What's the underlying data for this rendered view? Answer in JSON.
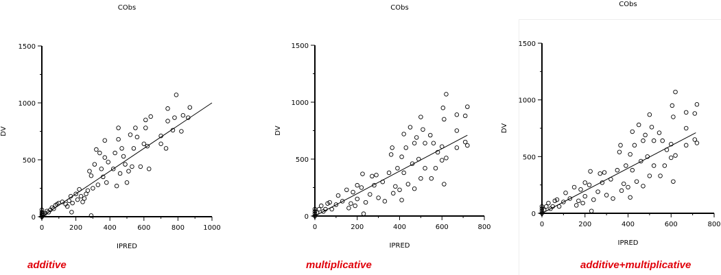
{
  "chart_data": [
    {
      "type": "scatter",
      "title": "CObs",
      "xlabel": "IPRED",
      "ylabel": "DV",
      "caption": "additive",
      "xlim": [
        0,
        1000
      ],
      "ylim": [
        0,
        1500
      ],
      "xticks": [
        0,
        200,
        400,
        600,
        800,
        1000
      ],
      "yticks": [
        0,
        500,
        1000,
        1500
      ],
      "fit_line": [
        [
          0,
          0
        ],
        [
          1000,
          1000
        ]
      ],
      "points": [
        [
          0,
          0
        ],
        [
          0,
          20
        ],
        [
          0,
          40
        ],
        [
          0,
          60
        ],
        [
          2,
          10
        ],
        [
          3,
          30
        ],
        [
          10,
          20
        ],
        [
          20,
          30
        ],
        [
          30,
          50
        ],
        [
          40,
          40
        ],
        [
          50,
          60
        ],
        [
          60,
          80
        ],
        [
          70,
          70
        ],
        [
          80,
          100
        ],
        [
          90,
          110
        ],
        [
          100,
          120
        ],
        [
          120,
          130
        ],
        [
          140,
          110
        ],
        [
          150,
          90
        ],
        [
          160,
          140
        ],
        [
          170,
          180
        ],
        [
          175,
          40
        ],
        [
          180,
          120
        ],
        [
          200,
          200
        ],
        [
          210,
          150
        ],
        [
          220,
          240
        ],
        [
          230,
          180
        ],
        [
          240,
          130
        ],
        [
          250,
          160
        ],
        [
          260,
          200
        ],
        [
          270,
          230
        ],
        [
          280,
          400
        ],
        [
          290,
          10
        ],
        [
          290,
          360
        ],
        [
          300,
          250
        ],
        [
          310,
          460
        ],
        [
          320,
          590
        ],
        [
          330,
          280
        ],
        [
          340,
          560
        ],
        [
          350,
          420
        ],
        [
          360,
          350
        ],
        [
          370,
          670
        ],
        [
          370,
          520
        ],
        [
          380,
          300
        ],
        [
          390,
          480
        ],
        [
          420,
          420
        ],
        [
          430,
          560
        ],
        [
          440,
          270
        ],
        [
          450,
          780
        ],
        [
          450,
          680
        ],
        [
          460,
          380
        ],
        [
          470,
          600
        ],
        [
          480,
          530
        ],
        [
          490,
          460
        ],
        [
          500,
          300
        ],
        [
          510,
          400
        ],
        [
          520,
          720
        ],
        [
          530,
          440
        ],
        [
          540,
          600
        ],
        [
          550,
          780
        ],
        [
          560,
          700
        ],
        [
          580,
          440
        ],
        [
          600,
          640
        ],
        [
          610,
          780
        ],
        [
          610,
          850
        ],
        [
          620,
          620
        ],
        [
          630,
          420
        ],
        [
          640,
          880
        ],
        [
          700,
          710
        ],
        [
          700,
          640
        ],
        [
          730,
          600
        ],
        [
          740,
          950
        ],
        [
          740,
          840
        ],
        [
          770,
          760
        ],
        [
          780,
          870
        ],
        [
          790,
          1070
        ],
        [
          820,
          750
        ],
        [
          830,
          890
        ],
        [
          860,
          870
        ],
        [
          870,
          960
        ]
      ]
    },
    {
      "type": "scatter",
      "title": "CObs",
      "xlabel": "IPRED",
      "ylabel": "DV",
      "caption": "multiplicative",
      "xlim": [
        0,
        800
      ],
      "ylim": [
        0,
        1500
      ],
      "xticks": [
        0,
        200,
        400,
        600,
        800
      ],
      "yticks": [
        0,
        500,
        1000,
        1500
      ],
      "fit_line": [
        [
          0,
          0
        ],
        [
          720,
          710
        ]
      ],
      "points": [
        [
          0,
          0
        ],
        [
          0,
          20
        ],
        [
          0,
          40
        ],
        [
          0,
          60
        ],
        [
          10,
          30
        ],
        [
          20,
          60
        ],
        [
          30,
          90
        ],
        [
          40,
          40
        ],
        [
          50,
          60
        ],
        [
          60,
          110
        ],
        [
          70,
          120
        ],
        [
          80,
          60
        ],
        [
          100,
          100
        ],
        [
          110,
          180
        ],
        [
          130,
          130
        ],
        [
          150,
          230
        ],
        [
          160,
          70
        ],
        [
          170,
          110
        ],
        [
          180,
          210
        ],
        [
          190,
          90
        ],
        [
          200,
          150
        ],
        [
          200,
          270
        ],
        [
          220,
          250
        ],
        [
          225,
          370
        ],
        [
          230,
          20
        ],
        [
          240,
          120
        ],
        [
          260,
          190
        ],
        [
          270,
          350
        ],
        [
          280,
          270
        ],
        [
          290,
          360
        ],
        [
          300,
          160
        ],
        [
          320,
          300
        ],
        [
          330,
          130
        ],
        [
          350,
          380
        ],
        [
          360,
          540
        ],
        [
          365,
          600
        ],
        [
          370,
          200
        ],
        [
          380,
          260
        ],
        [
          390,
          420
        ],
        [
          400,
          230
        ],
        [
          410,
          140
        ],
        [
          410,
          520
        ],
        [
          420,
          720
        ],
        [
          420,
          380
        ],
        [
          430,
          600
        ],
        [
          440,
          280
        ],
        [
          450,
          780
        ],
        [
          460,
          460
        ],
        [
          470,
          640
        ],
        [
          470,
          240
        ],
        [
          480,
          690
        ],
        [
          490,
          500
        ],
        [
          500,
          870
        ],
        [
          500,
          330
        ],
        [
          510,
          760
        ],
        [
          520,
          640
        ],
        [
          520,
          420
        ],
        [
          545,
          710
        ],
        [
          550,
          330
        ],
        [
          560,
          640
        ],
        [
          570,
          420
        ],
        [
          580,
          560
        ],
        [
          600,
          610
        ],
        [
          600,
          490
        ],
        [
          605,
          950
        ],
        [
          610,
          850
        ],
        [
          610,
          280
        ],
        [
          620,
          1070
        ],
        [
          620,
          510
        ],
        [
          670,
          890
        ],
        [
          670,
          600
        ],
        [
          670,
          750
        ],
        [
          710,
          880
        ],
        [
          710,
          650
        ],
        [
          720,
          960
        ],
        [
          720,
          620
        ]
      ]
    },
    {
      "type": "scatter",
      "title": "CObs",
      "xlabel": "IPRED",
      "ylabel": "DV",
      "caption": "additive+multiplicative",
      "xlim": [
        0,
        800
      ],
      "ylim": [
        0,
        1500
      ],
      "xticks": [
        0,
        200,
        400,
        600,
        800
      ],
      "yticks": [
        0,
        500,
        1000,
        1500
      ],
      "fit_line": [
        [
          0,
          0
        ],
        [
          715,
          710
        ]
      ],
      "points": [
        [
          0,
          0
        ],
        [
          0,
          20
        ],
        [
          0,
          40
        ],
        [
          0,
          60
        ],
        [
          10,
          30
        ],
        [
          20,
          60
        ],
        [
          30,
          90
        ],
        [
          40,
          40
        ],
        [
          50,
          60
        ],
        [
          60,
          110
        ],
        [
          70,
          120
        ],
        [
          80,
          60
        ],
        [
          100,
          100
        ],
        [
          110,
          180
        ],
        [
          130,
          130
        ],
        [
          150,
          230
        ],
        [
          160,
          70
        ],
        [
          170,
          110
        ],
        [
          180,
          210
        ],
        [
          190,
          90
        ],
        [
          200,
          150
        ],
        [
          200,
          270
        ],
        [
          220,
          250
        ],
        [
          225,
          370
        ],
        [
          230,
          20
        ],
        [
          240,
          120
        ],
        [
          260,
          190
        ],
        [
          270,
          350
        ],
        [
          280,
          270
        ],
        [
          290,
          360
        ],
        [
          300,
          160
        ],
        [
          320,
          300
        ],
        [
          330,
          130
        ],
        [
          350,
          380
        ],
        [
          360,
          540
        ],
        [
          365,
          600
        ],
        [
          370,
          200
        ],
        [
          380,
          260
        ],
        [
          390,
          420
        ],
        [
          400,
          230
        ],
        [
          410,
          140
        ],
        [
          410,
          520
        ],
        [
          420,
          720
        ],
        [
          420,
          380
        ],
        [
          430,
          600
        ],
        [
          440,
          280
        ],
        [
          450,
          780
        ],
        [
          460,
          460
        ],
        [
          470,
          640
        ],
        [
          470,
          240
        ],
        [
          480,
          690
        ],
        [
          490,
          500
        ],
        [
          500,
          870
        ],
        [
          500,
          330
        ],
        [
          510,
          760
        ],
        [
          520,
          640
        ],
        [
          520,
          420
        ],
        [
          545,
          710
        ],
        [
          550,
          330
        ],
        [
          560,
          640
        ],
        [
          570,
          420
        ],
        [
          580,
          560
        ],
        [
          600,
          610
        ],
        [
          600,
          490
        ],
        [
          605,
          950
        ],
        [
          610,
          850
        ],
        [
          610,
          280
        ],
        [
          620,
          1070
        ],
        [
          620,
          510
        ],
        [
          670,
          890
        ],
        [
          670,
          600
        ],
        [
          670,
          750
        ],
        [
          710,
          880
        ],
        [
          710,
          650
        ],
        [
          720,
          960
        ],
        [
          720,
          620
        ]
      ]
    }
  ]
}
